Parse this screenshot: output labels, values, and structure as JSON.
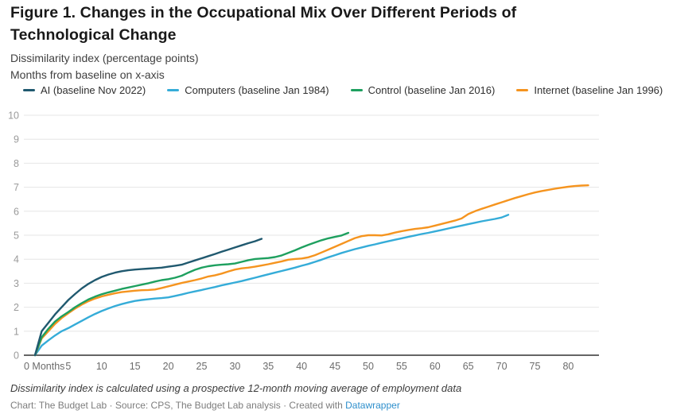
{
  "header": {
    "title": "Figure 1. Changes in the Occupational Mix Over Different Periods of Technological Change",
    "subtitle_lines": [
      "Dissimilarity index (percentage points)",
      "Months from baseline on x-axis"
    ]
  },
  "notes": {
    "footnote": "Dissimilarity index is calculated using a prospective 12-month moving average of employment data",
    "attribution_prefix": "Chart: The Budget Lab · Source: CPS, The Budget Lab analysis · Created with ",
    "attribution_link": "Datawrapper"
  },
  "chart_data": {
    "type": "line",
    "title": "Figure 1. Changes in the Occupational Mix Over Different Periods of Technological Change",
    "xlabel": "Months from baseline",
    "ylabel": "Dissimilarity index (percentage points)",
    "ylim": [
      0,
      10
    ],
    "xlim": [
      0,
      84
    ],
    "grid": "horizontal",
    "legend_position": "top",
    "y_ticks": [
      0,
      1,
      2,
      3,
      4,
      5,
      6,
      7,
      8,
      9,
      10
    ],
    "x_ticks": {
      "values": [
        0,
        5,
        10,
        15,
        20,
        25,
        30,
        35,
        40,
        45,
        50,
        55,
        60,
        65,
        70,
        75,
        80
      ],
      "labels": [
        "0 Months",
        "5",
        "10",
        "15",
        "20",
        "25",
        "30",
        "35",
        "40",
        "45",
        "50",
        "55",
        "60",
        "65",
        "70",
        "75",
        "80"
      ]
    },
    "series": [
      {
        "name": "AI (baseline Nov 2022)",
        "color": "#20596f",
        "points": [
          [
            0,
            0
          ],
          [
            1,
            1.0
          ],
          [
            2,
            1.35
          ],
          [
            3,
            1.7
          ],
          [
            4,
            2.0
          ],
          [
            5,
            2.3
          ],
          [
            6,
            2.55
          ],
          [
            7,
            2.78
          ],
          [
            8,
            2.97
          ],
          [
            9,
            3.13
          ],
          [
            10,
            3.26
          ],
          [
            11,
            3.36
          ],
          [
            12,
            3.44
          ],
          [
            13,
            3.5
          ],
          [
            14,
            3.54
          ],
          [
            15,
            3.57
          ],
          [
            16,
            3.59
          ],
          [
            17,
            3.61
          ],
          [
            18,
            3.63
          ],
          [
            19,
            3.65
          ],
          [
            20,
            3.69
          ],
          [
            21,
            3.73
          ],
          [
            22,
            3.77
          ],
          [
            23,
            3.86
          ],
          [
            24,
            3.95
          ],
          [
            25,
            4.04
          ],
          [
            26,
            4.13
          ],
          [
            27,
            4.22
          ],
          [
            28,
            4.31
          ],
          [
            29,
            4.4
          ],
          [
            30,
            4.49
          ],
          [
            31,
            4.58
          ],
          [
            32,
            4.67
          ],
          [
            33,
            4.75
          ],
          [
            34,
            4.85
          ]
        ]
      },
      {
        "name": "Computers (baseline Jan 1984)",
        "color": "#35acd8",
        "points": [
          [
            0,
            0
          ],
          [
            1,
            0.4
          ],
          [
            2,
            0.62
          ],
          [
            3,
            0.82
          ],
          [
            4,
            1.0
          ],
          [
            5,
            1.13
          ],
          [
            6,
            1.28
          ],
          [
            7,
            1.43
          ],
          [
            8,
            1.58
          ],
          [
            9,
            1.72
          ],
          [
            10,
            1.84
          ],
          [
            11,
            1.95
          ],
          [
            12,
            2.05
          ],
          [
            13,
            2.13
          ],
          [
            14,
            2.2
          ],
          [
            15,
            2.26
          ],
          [
            16,
            2.3
          ],
          [
            17,
            2.33
          ],
          [
            18,
            2.36
          ],
          [
            19,
            2.38
          ],
          [
            20,
            2.41
          ],
          [
            21,
            2.47
          ],
          [
            22,
            2.53
          ],
          [
            23,
            2.6
          ],
          [
            24,
            2.66
          ],
          [
            25,
            2.72
          ],
          [
            26,
            2.78
          ],
          [
            27,
            2.84
          ],
          [
            28,
            2.91
          ],
          [
            29,
            2.97
          ],
          [
            30,
            3.03
          ],
          [
            31,
            3.09
          ],
          [
            32,
            3.16
          ],
          [
            33,
            3.23
          ],
          [
            34,
            3.3
          ],
          [
            35,
            3.37
          ],
          [
            36,
            3.44
          ],
          [
            37,
            3.51
          ],
          [
            38,
            3.58
          ],
          [
            39,
            3.65
          ],
          [
            40,
            3.73
          ],
          [
            41,
            3.8
          ],
          [
            42,
            3.89
          ],
          [
            43,
            3.98
          ],
          [
            44,
            4.08
          ],
          [
            45,
            4.17
          ],
          [
            46,
            4.26
          ],
          [
            47,
            4.34
          ],
          [
            48,
            4.42
          ],
          [
            49,
            4.49
          ],
          [
            50,
            4.56
          ],
          [
            51,
            4.62
          ],
          [
            52,
            4.69
          ],
          [
            53,
            4.75
          ],
          [
            54,
            4.81
          ],
          [
            55,
            4.87
          ],
          [
            56,
            4.93
          ],
          [
            57,
            4.99
          ],
          [
            58,
            5.05
          ],
          [
            59,
            5.1
          ],
          [
            60,
            5.16
          ],
          [
            61,
            5.22
          ],
          [
            62,
            5.28
          ],
          [
            63,
            5.34
          ],
          [
            64,
            5.4
          ],
          [
            65,
            5.46
          ],
          [
            66,
            5.52
          ],
          [
            67,
            5.58
          ],
          [
            68,
            5.63
          ],
          [
            69,
            5.68
          ],
          [
            70,
            5.74
          ],
          [
            71,
            5.85
          ]
        ]
      },
      {
        "name": "Control (baseline Jan 2016)",
        "color": "#1ea05f",
        "points": [
          [
            0,
            0
          ],
          [
            1,
            0.75
          ],
          [
            2,
            1.1
          ],
          [
            3,
            1.4
          ],
          [
            4,
            1.62
          ],
          [
            5,
            1.8
          ],
          [
            6,
            2.0
          ],
          [
            7,
            2.17
          ],
          [
            8,
            2.32
          ],
          [
            9,
            2.44
          ],
          [
            10,
            2.54
          ],
          [
            11,
            2.62
          ],
          [
            12,
            2.69
          ],
          [
            13,
            2.76
          ],
          [
            14,
            2.82
          ],
          [
            15,
            2.88
          ],
          [
            16,
            2.94
          ],
          [
            17,
            3.0
          ],
          [
            18,
            3.07
          ],
          [
            19,
            3.13
          ],
          [
            20,
            3.17
          ],
          [
            21,
            3.23
          ],
          [
            22,
            3.31
          ],
          [
            23,
            3.44
          ],
          [
            24,
            3.56
          ],
          [
            25,
            3.65
          ],
          [
            26,
            3.71
          ],
          [
            27,
            3.75
          ],
          [
            28,
            3.77
          ],
          [
            29,
            3.79
          ],
          [
            30,
            3.82
          ],
          [
            31,
            3.89
          ],
          [
            32,
            3.96
          ],
          [
            33,
            4.01
          ],
          [
            34,
            4.03
          ],
          [
            35,
            4.05
          ],
          [
            36,
            4.09
          ],
          [
            37,
            4.16
          ],
          [
            38,
            4.26
          ],
          [
            39,
            4.37
          ],
          [
            40,
            4.49
          ],
          [
            41,
            4.6
          ],
          [
            42,
            4.7
          ],
          [
            43,
            4.79
          ],
          [
            44,
            4.87
          ],
          [
            45,
            4.93
          ],
          [
            46,
            4.99
          ],
          [
            47,
            5.1
          ]
        ]
      },
      {
        "name": "Internet (baseline Jan 1996)",
        "color": "#f5941f",
        "points": [
          [
            0,
            0
          ],
          [
            1,
            0.7
          ],
          [
            2,
            1.0
          ],
          [
            3,
            1.3
          ],
          [
            4,
            1.55
          ],
          [
            5,
            1.75
          ],
          [
            6,
            1.94
          ],
          [
            7,
            2.11
          ],
          [
            8,
            2.25
          ],
          [
            9,
            2.36
          ],
          [
            10,
            2.45
          ],
          [
            11,
            2.52
          ],
          [
            12,
            2.58
          ],
          [
            13,
            2.63
          ],
          [
            14,
            2.66
          ],
          [
            15,
            2.69
          ],
          [
            16,
            2.71
          ],
          [
            17,
            2.72
          ],
          [
            18,
            2.74
          ],
          [
            19,
            2.8
          ],
          [
            20,
            2.87
          ],
          [
            21,
            2.94
          ],
          [
            22,
            3.01
          ],
          [
            23,
            3.07
          ],
          [
            24,
            3.13
          ],
          [
            25,
            3.2
          ],
          [
            26,
            3.28
          ],
          [
            27,
            3.33
          ],
          [
            28,
            3.4
          ],
          [
            29,
            3.49
          ],
          [
            30,
            3.57
          ],
          [
            31,
            3.62
          ],
          [
            32,
            3.65
          ],
          [
            33,
            3.69
          ],
          [
            34,
            3.74
          ],
          [
            35,
            3.79
          ],
          [
            36,
            3.85
          ],
          [
            37,
            3.91
          ],
          [
            38,
            3.98
          ],
          [
            39,
            4.01
          ],
          [
            40,
            4.03
          ],
          [
            41,
            4.08
          ],
          [
            42,
            4.17
          ],
          [
            43,
            4.28
          ],
          [
            44,
            4.4
          ],
          [
            45,
            4.52
          ],
          [
            46,
            4.64
          ],
          [
            47,
            4.76
          ],
          [
            48,
            4.88
          ],
          [
            49,
            4.96
          ],
          [
            50,
            5.0
          ],
          [
            51,
            5.0
          ],
          [
            52,
            4.99
          ],
          [
            53,
            5.04
          ],
          [
            54,
            5.11
          ],
          [
            55,
            5.17
          ],
          [
            56,
            5.22
          ],
          [
            57,
            5.26
          ],
          [
            58,
            5.29
          ],
          [
            59,
            5.33
          ],
          [
            60,
            5.4
          ],
          [
            61,
            5.47
          ],
          [
            62,
            5.54
          ],
          [
            63,
            5.61
          ],
          [
            64,
            5.7
          ],
          [
            65,
            5.88
          ],
          [
            66,
            6.0
          ],
          [
            67,
            6.1
          ],
          [
            68,
            6.19
          ],
          [
            69,
            6.28
          ],
          [
            70,
            6.37
          ],
          [
            71,
            6.46
          ],
          [
            72,
            6.55
          ],
          [
            73,
            6.63
          ],
          [
            74,
            6.71
          ],
          [
            75,
            6.78
          ],
          [
            76,
            6.84
          ],
          [
            77,
            6.89
          ],
          [
            78,
            6.94
          ],
          [
            79,
            6.98
          ],
          [
            80,
            7.02
          ],
          [
            81,
            7.05
          ],
          [
            82,
            7.07
          ],
          [
            83,
            7.08
          ]
        ]
      }
    ]
  }
}
